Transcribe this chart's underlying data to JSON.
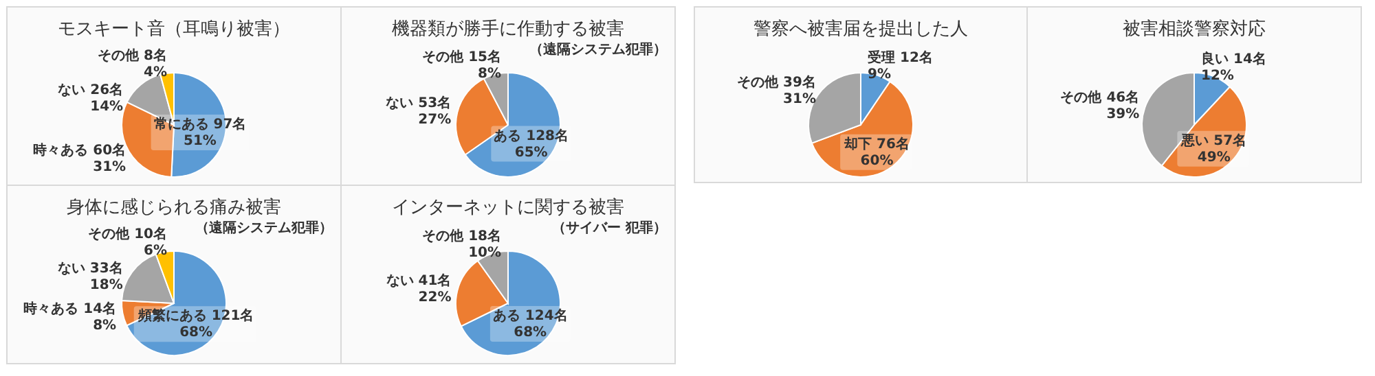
{
  "chart_data": [
    {
      "type": "pie",
      "title": "モスキート音（耳鳴り被害）",
      "categories": [
        "常にある",
        "時々ある",
        "ない",
        "その他"
      ],
      "values": [
        97,
        60,
        26,
        8
      ],
      "colors": [
        "#5b9bd5",
        "#ed7d31",
        "#a5a5a5",
        "#ffc000"
      ],
      "value_labels": [
        "97名\n51%",
        "60名\n31%",
        "26名\n14%",
        "8名\n4%"
      ]
    },
    {
      "type": "pie",
      "title": "機器類が勝手に作動する被害",
      "subtitle": "（遠隔システム犯罪）",
      "categories": [
        "ある",
        "ない",
        "その他"
      ],
      "values": [
        128,
        53,
        15
      ],
      "colors": [
        "#5b9bd5",
        "#ed7d31",
        "#a5a5a5"
      ],
      "value_labels": [
        "128名\n65%",
        "53名\n27%",
        "15名\n8%"
      ]
    },
    {
      "type": "pie",
      "title": "警察へ被害届を提出した人",
      "categories": [
        "受理",
        "却下",
        "その他"
      ],
      "values": [
        12,
        76,
        39
      ],
      "colors": [
        "#5b9bd5",
        "#ed7d31",
        "#a5a5a5"
      ],
      "value_labels": [
        "12名\n9%",
        "76名\n60%",
        "39名\n31%"
      ]
    },
    {
      "type": "pie",
      "title": "被害相談警察対応",
      "categories": [
        "良い",
        "悪い",
        "その他"
      ],
      "values": [
        14,
        57,
        46
      ],
      "colors": [
        "#5b9bd5",
        "#ed7d31",
        "#a5a5a5"
      ],
      "value_labels": [
        "14名\n12%",
        "57名\n49%",
        "46名\n39%"
      ]
    },
    {
      "type": "pie",
      "title": "身体に感じられる痛み被害",
      "subtitle": "（遠隔システム犯罪）",
      "categories": [
        "頻繁にある",
        "時々ある",
        "ない",
        "その他"
      ],
      "values": [
        121,
        14,
        33,
        10
      ],
      "colors": [
        "#5b9bd5",
        "#ed7d31",
        "#a5a5a5",
        "#ffc000"
      ],
      "value_labels": [
        "121名\n68%",
        "14名\n8%",
        "33名\n18%",
        "10名\n6%"
      ]
    },
    {
      "type": "pie",
      "title": "インターネットに関する被害",
      "subtitle": "（サイバー 犯罪）",
      "categories": [
        "ある",
        "ない",
        "その他"
      ],
      "values": [
        124,
        41,
        18
      ],
      "colors": [
        "#5b9bd5",
        "#ed7d31",
        "#a5a5a5"
      ],
      "value_labels": [
        "124名\n68%",
        "41名\n22%",
        "18名\n10%"
      ]
    }
  ]
}
